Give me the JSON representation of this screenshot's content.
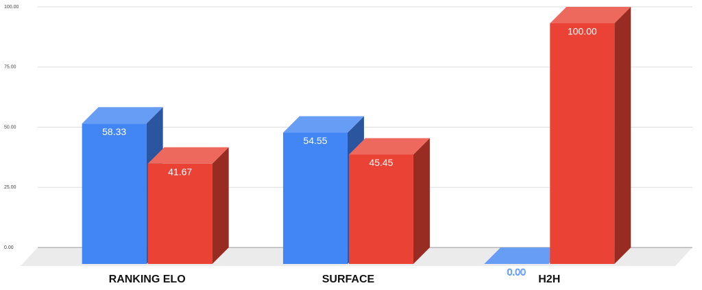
{
  "chart_data": {
    "type": "bar3d",
    "categories": [
      "RANKING ELO",
      "SURFACE",
      "H2H"
    ],
    "series": [
      {
        "color": "#4285f4",
        "values": [
          58.33,
          54.55,
          0
        ],
        "value_labels": [
          "58.33",
          "54.55",
          "0.00"
        ]
      },
      {
        "color": "#ea4335",
        "values": [
          41.67,
          45.45,
          100
        ],
        "value_labels": [
          "41.67",
          "45.45",
          "100.00"
        ]
      }
    ],
    "ylim": [
      0,
      100
    ],
    "yticks": [
      {
        "value": 0,
        "label": "0.00"
      },
      {
        "value": 25,
        "label": "25.00"
      },
      {
        "value": 50,
        "label": "50.00"
      },
      {
        "value": 75,
        "label": "75.00"
      },
      {
        "value": 100,
        "label": "100.00"
      }
    ],
    "grid": true
  }
}
